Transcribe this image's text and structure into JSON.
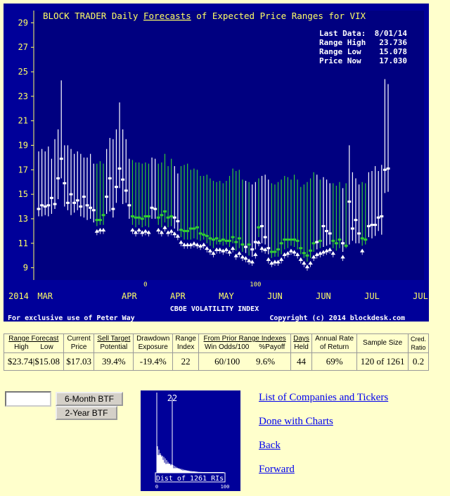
{
  "chart_data": {
    "type": "range",
    "title_prefix": "BLOCK TRADER Daily ",
    "title_link": "Forecasts",
    "title_suffix": " of Expected Price Ranges for  VIX",
    "ylim": [
      8,
      30
    ],
    "yticks": [
      9,
      11,
      13,
      15,
      17,
      19,
      21,
      23,
      25,
      27,
      29
    ],
    "year_label": "2014",
    "month_labels": [
      {
        "text": "MAR",
        "i": 2
      },
      {
        "text": "APR",
        "i": 28
      },
      {
        "text": "APR",
        "i": 43
      },
      {
        "text": "MAY",
        "i": 58
      },
      {
        "text": "JUN",
        "i": 73
      },
      {
        "text": "JUN",
        "i": 88
      },
      {
        "text": "JUL",
        "i": 103
      },
      {
        "text": "JUL",
        "i": 118
      }
    ],
    "markers": [
      {
        "text": "0",
        "i": 33
      },
      {
        "text": "100",
        "i": 67
      }
    ],
    "xlabel": "CBOE VOLATILITY INDEX",
    "footer_left": "For exclusive use of Peter Way",
    "footer_right": "Copyright (c) 2014 blockdesk.com",
    "info": [
      {
        "label": "Last Data:",
        "value": "8/01/14"
      },
      {
        "label": "Range High",
        "value": "23.736"
      },
      {
        "label": "Range Low",
        "value": "15.078"
      },
      {
        "label": "Price Now",
        "value": "17.030"
      }
    ],
    "bars": [
      [
        18.5,
        13.2,
        13.8,
        "w",
        0
      ],
      [
        18.7,
        13.2,
        14.1,
        "w",
        0
      ],
      [
        18.5,
        13.3,
        14.0,
        "w",
        0
      ],
      [
        18.9,
        13.2,
        14.1,
        "w",
        0
      ],
      [
        17.9,
        13.4,
        14.7,
        "w",
        0
      ],
      [
        19.5,
        13.8,
        14.2,
        "w",
        0
      ],
      [
        20.3,
        14.6,
        16.3,
        "w",
        0
      ],
      [
        24.3,
        16.3,
        17.9,
        "w",
        0
      ],
      [
        19.0,
        14.0,
        15.9,
        "w",
        0
      ],
      [
        19.0,
        13.7,
        14.3,
        "w",
        0
      ],
      [
        18.7,
        13.3,
        15.0,
        "w",
        0
      ],
      [
        18.3,
        13.5,
        14.3,
        "w",
        0
      ],
      [
        18.5,
        13.7,
        14.5,
        "w",
        0
      ],
      [
        18.3,
        13.2,
        14.0,
        "w",
        0
      ],
      [
        18.0,
        13.1,
        14.8,
        "w",
        0
      ],
      [
        18.0,
        12.9,
        14.1,
        "w",
        0
      ],
      [
        18.3,
        13.0,
        13.9,
        "w",
        0
      ],
      [
        17.5,
        12.7,
        13.7,
        "w",
        0
      ],
      [
        17.5,
        12.4,
        12.9,
        "g",
        1
      ],
      [
        17.7,
        12.5,
        12.9,
        "g",
        1
      ],
      [
        17.5,
        12.5,
        13.3,
        "g",
        1
      ],
      [
        18.7,
        13.4,
        14.8,
        "w",
        0
      ],
      [
        19.6,
        13.6,
        16.3,
        "w",
        0
      ],
      [
        19.5,
        13.1,
        13.8,
        "w",
        0
      ],
      [
        20.3,
        14.3,
        15.6,
        "w",
        0
      ],
      [
        22.5,
        15.5,
        17.1,
        "w",
        0
      ],
      [
        20.3,
        14.2,
        16.2,
        "w",
        0
      ],
      [
        19.5,
        14.3,
        15.3,
        "w",
        0
      ],
      [
        17.9,
        13.0,
        14.1,
        "w",
        0
      ],
      [
        17.8,
        12.5,
        13.2,
        "g",
        1
      ],
      [
        17.6,
        12.3,
        13.1,
        "g",
        1
      ],
      [
        17.6,
        12.5,
        13.1,
        "g",
        1
      ],
      [
        17.5,
        12.3,
        13.0,
        "g",
        1
      ],
      [
        17.6,
        12.4,
        13.2,
        "g",
        1
      ],
      [
        17.5,
        12.3,
        13.2,
        "g",
        1
      ],
      [
        18.0,
        13.0,
        13.9,
        "w",
        0
      ],
      [
        17.9,
        13.0,
        13.8,
        "w",
        0
      ],
      [
        17.5,
        12.5,
        13.1,
        "g",
        1
      ],
      [
        17.6,
        12.3,
        13.3,
        "g",
        1
      ],
      [
        18.3,
        12.7,
        13.6,
        "g",
        1
      ],
      [
        17.3,
        12.3,
        13.1,
        "g",
        1
      ],
      [
        17.9,
        12.4,
        13.2,
        "g",
        1
      ],
      [
        17.3,
        12.2,
        13.1,
        "w",
        1
      ],
      [
        16.7,
        12.0,
        12.8,
        "w",
        1
      ],
      [
        17.3,
        11.5,
        12.1,
        "g",
        1
      ],
      [
        17.4,
        11.3,
        12.0,
        "g",
        1
      ],
      [
        17.5,
        11.3,
        12.0,
        "g",
        1
      ],
      [
        17.0,
        11.3,
        12.2,
        "g",
        1
      ],
      [
        17.1,
        11.4,
        12.2,
        "g",
        1
      ],
      [
        17.0,
        11.3,
        12.3,
        "g",
        1
      ],
      [
        16.5,
        11.2,
        11.8,
        "g",
        1
      ],
      [
        16.5,
        11.3,
        11.7,
        "g",
        1
      ],
      [
        16.6,
        11.0,
        11.6,
        "g",
        1
      ],
      [
        16.3,
        10.8,
        11.4,
        "g",
        1
      ],
      [
        16.1,
        10.6,
        11.3,
        "g",
        1
      ],
      [
        16.0,
        10.9,
        11.4,
        "g",
        1
      ],
      [
        16.1,
        10.9,
        11.2,
        "g",
        1
      ],
      [
        15.9,
        10.8,
        11.3,
        "g",
        1
      ],
      [
        16.1,
        10.9,
        11.2,
        "g",
        1
      ],
      [
        16.5,
        10.7,
        11.2,
        "g",
        1
      ],
      [
        17.1,
        11.0,
        11.5,
        "g",
        1
      ],
      [
        16.9,
        10.4,
        11.1,
        "g",
        1
      ],
      [
        17.0,
        10.6,
        11.4,
        "g",
        1
      ],
      [
        16.2,
        10.3,
        10.9,
        "g",
        1
      ],
      [
        16.1,
        10.2,
        10.7,
        "w",
        1
      ],
      [
        16.0,
        10.0,
        10.9,
        "g",
        1
      ],
      [
        15.8,
        9.9,
        10.5,
        "w",
        1
      ],
      [
        16.0,
        10.5,
        11.1,
        "w",
        1
      ],
      [
        16.3,
        11.5,
        12.3,
        "g",
        1
      ],
      [
        16.5,
        11.0,
        12.4,
        "w",
        1
      ],
      [
        16.6,
        10.9,
        11.5,
        "w",
        1
      ],
      [
        16.2,
        10.1,
        10.6,
        "w",
        1
      ],
      [
        15.9,
        9.8,
        10.3,
        "g",
        1
      ],
      [
        15.8,
        9.9,
        10.3,
        "g",
        1
      ],
      [
        16.0,
        9.9,
        10.5,
        "g",
        1
      ],
      [
        16.2,
        10.1,
        11.0,
        "g",
        1
      ],
      [
        16.5,
        10.5,
        11.3,
        "g",
        1
      ],
      [
        16.4,
        10.6,
        11.3,
        "g",
        1
      ],
      [
        16.2,
        10.8,
        11.3,
        "g",
        1
      ],
      [
        16.6,
        10.7,
        11.3,
        "g",
        1
      ],
      [
        16.2,
        10.5,
        11.2,
        "g",
        1
      ],
      [
        15.6,
        10.1,
        10.6,
        "g",
        1
      ],
      [
        15.8,
        9.8,
        10.2,
        "g",
        1
      ],
      [
        16.0,
        9.5,
        10.0,
        "g",
        1
      ],
      [
        16.3,
        9.8,
        10.4,
        "g",
        1
      ],
      [
        16.8,
        10.3,
        11.0,
        "g",
        1
      ],
      [
        16.6,
        10.5,
        11.1,
        "w",
        1
      ],
      [
        16.2,
        10.6,
        11.2,
        "g",
        1
      ],
      [
        16.4,
        10.7,
        12.4,
        "w",
        1
      ],
      [
        16.2,
        10.8,
        12.0,
        "w",
        1
      ],
      [
        15.9,
        10.9,
        11.8,
        "w",
        1
      ],
      [
        15.9,
        10.6,
        11.2,
        "g",
        1
      ],
      [
        15.7,
        10.4,
        11.0,
        "g",
        0
      ],
      [
        16.0,
        10.6,
        11.3,
        "g",
        0
      ],
      [
        15.5,
        10.3,
        11.0,
        "w",
        1
      ],
      [
        15.9,
        10.6,
        10.8,
        "g",
        0
      ],
      [
        19.0,
        10.9,
        14.4,
        "w",
        0
      ],
      [
        16.8,
        11.2,
        12.2,
        "w",
        0
      ],
      [
        16.3,
        11.0,
        12.9,
        "w",
        0
      ],
      [
        15.8,
        11.0,
        11.8,
        "w",
        0
      ],
      [
        16.0,
        10.8,
        11.4,
        "g",
        1
      ],
      [
        15.9,
        10.9,
        11.3,
        "g",
        0
      ],
      [
        16.8,
        11.5,
        12.4,
        "w",
        0
      ],
      [
        16.9,
        11.4,
        12.5,
        "w",
        0
      ],
      [
        17.3,
        11.6,
        12.5,
        "w",
        0
      ],
      [
        16.9,
        12.0,
        13.1,
        "w",
        0
      ],
      [
        17.4,
        11.7,
        13.2,
        "w",
        0
      ],
      [
        24.4,
        15.1,
        17.0,
        "w",
        0
      ],
      [
        24.0,
        15.2,
        17.1,
        "w",
        0
      ]
    ]
  },
  "table": {
    "headers": {
      "range_forecast": "Range Forecast",
      "high": "High",
      "low": "Low",
      "current": "Current",
      "price": "Price",
      "sell_target": "Sell Target",
      "potential": "Potential",
      "drawdown": "Drawdown",
      "exposure": "Exposure",
      "range": "Range",
      "index": "Index",
      "from_prior": "From Prior Range Indexes",
      "win_odds": "Win Odds/100",
      "payoff": "%Payoff",
      "days": "Days",
      "held": "Held",
      "annual_rate": "Annual Rate",
      "of_return": "of Return",
      "sample_size": "Sample Size",
      "cred": "Cred.",
      "ratio": "Ratio"
    },
    "values": {
      "high": "$23.74",
      "low": "$15.08",
      "price": "$17.03",
      "potential": "39.4%",
      "exposure": "-19.4%",
      "range_index": "22",
      "win_odds": "60/100",
      "payoff": "9.6%",
      "days_held": "44",
      "annual_return": "69%",
      "sample_size": "120 of 1261",
      "cred_ratio": "0.2"
    }
  },
  "controls": {
    "ticker_value": "",
    "btn_6month": "6-Month BTF",
    "btn_2year": "2-Year BTF"
  },
  "histogram": {
    "marker_value": "22",
    "caption": "Dist of 1261 RIs",
    "axis_min": "0",
    "axis_max": "100"
  },
  "links": {
    "companies": "List of Companies and Tickers",
    "done": "Done with Charts",
    "back": "Back",
    "forward": "Forward"
  },
  "colors": {
    "chart_bg": "#000099",
    "plot_bg": "#000080",
    "text_yellow": "#ffff66",
    "green": "#33cc33",
    "white": "#ffffff"
  }
}
